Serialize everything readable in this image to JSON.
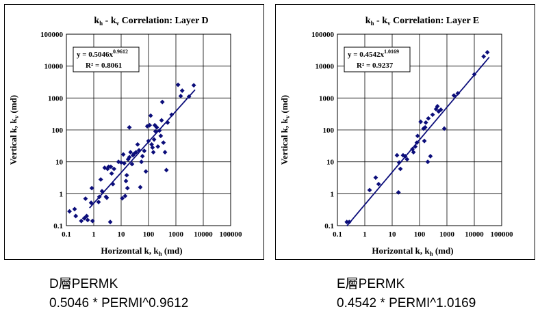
{
  "colors": {
    "marker": "#0b0d7a",
    "trend": "#0b0d7a",
    "grid": "#000000",
    "axis": "#000000"
  },
  "chart_data": [
    {
      "type": "scatter",
      "scale": "log-log",
      "title_main": "k",
      "title_sub1": "h",
      "title_mid": " - k",
      "title_sub2": "v",
      "title_tail": " Correlation:  Layer D",
      "xlabel_main": "Horizontal k, k",
      "xlabel_sub": "h",
      "xlabel_tail": "  (md)",
      "ylabel_main": "Vertical k, k",
      "ylabel_sub": "v",
      "ylabel_tail": "  (md)",
      "xlim": [
        0.1,
        100000
      ],
      "ylim": [
        0.1,
        100000
      ],
      "xticks": [
        "0.1",
        "1",
        "10",
        "100",
        "1000",
        "10000",
        "100000"
      ],
      "yticks": [
        "0.1",
        "1",
        "10",
        "100",
        "1000",
        "10000",
        "100000"
      ],
      "grid": true,
      "legend": "none",
      "eq_text": "y = 0.5046x",
      "eq_exp": "0.9612",
      "r2_label": "R² = 0.8061",
      "fit": {
        "a": 0.5046,
        "b": 0.9612,
        "x_range": [
          0.7,
          5000
        ]
      },
      "points": [
        [
          0.13,
          0.28
        ],
        [
          0.2,
          0.33
        ],
        [
          0.22,
          0.2
        ],
        [
          0.35,
          0.14
        ],
        [
          0.45,
          0.17
        ],
        [
          0.5,
          0.7
        ],
        [
          0.55,
          0.2
        ],
        [
          0.6,
          0.15
        ],
        [
          0.8,
          0.52
        ],
        [
          0.85,
          1.5
        ],
        [
          0.9,
          0.14
        ],
        [
          1.5,
          0.55
        ],
        [
          1.6,
          0.8
        ],
        [
          1.8,
          2.8
        ],
        [
          2.0,
          1.2
        ],
        [
          2.5,
          6.5
        ],
        [
          2.8,
          0.8
        ],
        [
          3.0,
          0.75
        ],
        [
          3.2,
          6.0
        ],
        [
          3.5,
          7.0
        ],
        [
          4.0,
          0.13
        ],
        [
          4.2,
          7.0
        ],
        [
          4.5,
          4.3
        ],
        [
          5.0,
          2.0
        ],
        [
          5.5,
          6.0
        ],
        [
          8.0,
          10
        ],
        [
          10,
          9.5
        ],
        [
          11,
          0.72
        ],
        [
          12,
          17
        ],
        [
          13,
          9
        ],
        [
          14,
          0.85
        ],
        [
          15,
          2.5
        ],
        [
          16,
          3.8
        ],
        [
          17,
          1.5
        ],
        [
          18,
          12
        ],
        [
          20,
          120
        ],
        [
          20,
          14
        ],
        [
          22,
          20
        ],
        [
          25,
          8.5
        ],
        [
          27,
          16
        ],
        [
          30,
          18
        ],
        [
          35,
          20
        ],
        [
          40,
          35
        ],
        [
          45,
          23
        ],
        [
          50,
          1.6
        ],
        [
          55,
          10
        ],
        [
          60,
          15
        ],
        [
          70,
          22
        ],
        [
          80,
          5
        ],
        [
          90,
          130
        ],
        [
          100,
          45
        ],
        [
          110,
          140
        ],
        [
          120,
          280
        ],
        [
          130,
          35
        ],
        [
          140,
          28
        ],
        [
          150,
          20
        ],
        [
          160,
          50
        ],
        [
          170,
          140
        ],
        [
          180,
          90
        ],
        [
          200,
          120
        ],
        [
          220,
          30
        ],
        [
          250,
          95
        ],
        [
          280,
          65
        ],
        [
          300,
          200
        ],
        [
          320,
          750
        ],
        [
          350,
          40
        ],
        [
          400,
          20
        ],
        [
          450,
          5.5
        ],
        [
          500,
          170
        ],
        [
          700,
          300
        ],
        [
          1200,
          2600
        ],
        [
          1500,
          1150
        ],
        [
          1700,
          1700
        ],
        [
          3000,
          1100
        ],
        [
          4500,
          2500
        ]
      ]
    },
    {
      "type": "scatter",
      "scale": "log-log",
      "title_main": "k",
      "title_sub1": "h",
      "title_mid": " - k",
      "title_sub2": "v",
      "title_tail": " Correlation:  Layer E",
      "xlabel_main": "Horizontal k, k",
      "xlabel_sub": "h",
      "xlabel_tail": "  (md)",
      "ylabel_main": "Vertical k, k",
      "ylabel_sub": "v",
      "ylabel_tail": "  (md)",
      "xlim": [
        0.1,
        100000
      ],
      "ylim": [
        0.1,
        100000
      ],
      "xticks": [
        "0.1",
        "1",
        "10",
        "100",
        "1000",
        "10000",
        "100000"
      ],
      "yticks": [
        "0.1",
        "1",
        "10",
        "100",
        "1000",
        "10000",
        "100000"
      ],
      "grid": true,
      "legend": "none",
      "eq_text": "y = 0.4542x",
      "eq_exp": "1.0169",
      "r2_label": "R² = 0.9237",
      "fit": {
        "a": 0.4542,
        "b": 1.0169,
        "x_range": [
          0.22,
          35000
        ]
      },
      "points": [
        [
          0.22,
          0.13
        ],
        [
          0.27,
          0.13
        ],
        [
          1.5,
          1.3
        ],
        [
          2.5,
          3.2
        ],
        [
          3.2,
          2.0
        ],
        [
          15,
          16
        ],
        [
          17,
          1.1
        ],
        [
          18,
          9.5
        ],
        [
          20,
          6.0
        ],
        [
          25,
          16
        ],
        [
          30,
          15
        ],
        [
          35,
          12
        ],
        [
          55,
          25
        ],
        [
          60,
          20
        ],
        [
          70,
          30
        ],
        [
          80,
          40
        ],
        [
          85,
          65
        ],
        [
          110,
          180
        ],
        [
          140,
          110
        ],
        [
          150,
          45
        ],
        [
          160,
          120
        ],
        [
          170,
          170
        ],
        [
          200,
          10
        ],
        [
          210,
          230
        ],
        [
          250,
          15
        ],
        [
          300,
          300
        ],
        [
          400,
          450
        ],
        [
          450,
          550
        ],
        [
          500,
          380
        ],
        [
          600,
          430
        ],
        [
          800,
          110
        ],
        [
          1800,
          1200
        ],
        [
          2500,
          1400
        ],
        [
          10000,
          5500
        ],
        [
          22000,
          20000
        ],
        [
          30000,
          27000
        ]
      ]
    }
  ],
  "captions": [
    {
      "title": "D層PERMK",
      "formula": "0.5046 * PERMI^0.9612"
    },
    {
      "title": "E層PERMK",
      "formula": "0.4542 * PERMI^1.0169"
    }
  ]
}
